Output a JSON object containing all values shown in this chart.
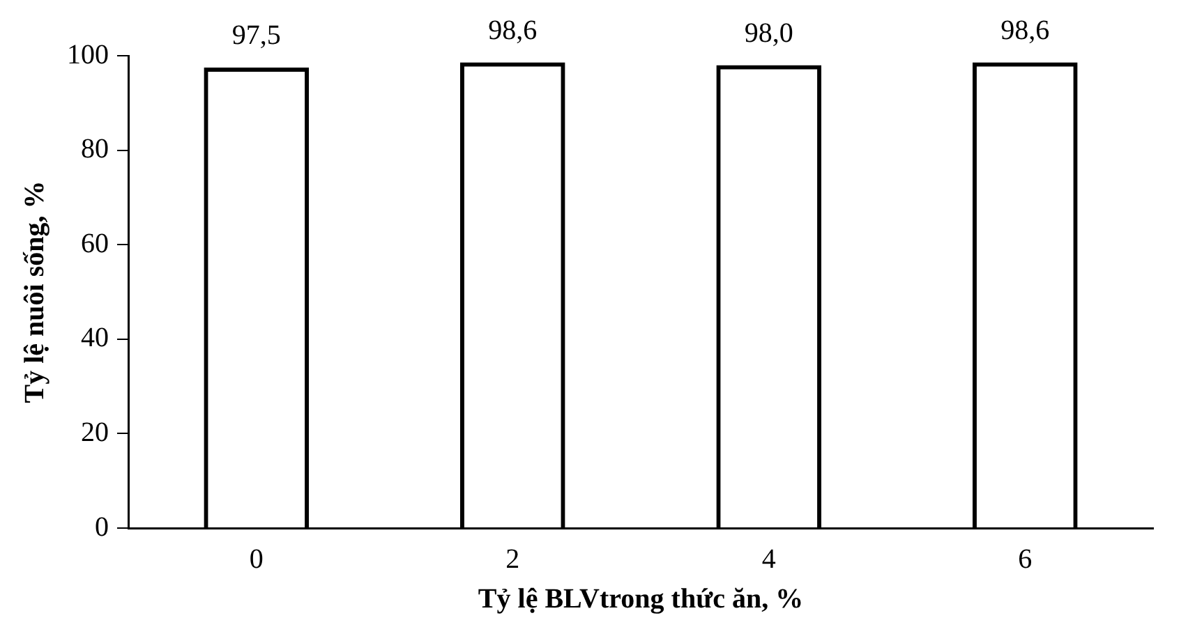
{
  "chart_data": {
    "type": "bar",
    "xlabel": "Tỷ lệ BLVtrong thức ăn, %",
    "ylabel": "Tỷ lệ nuôi sống, %",
    "categories": [
      "0",
      "2",
      "4",
      "6"
    ],
    "values": [
      97.5,
      98.6,
      98.0,
      98.6
    ],
    "value_labels": [
      "97,5",
      "98,6",
      "98,0",
      "98,6"
    ],
    "colors": [
      "#000000",
      "#000000",
      "#000000",
      "#000000"
    ],
    "ylim": [
      0,
      100
    ],
    "yticks": [
      0,
      20,
      40,
      60,
      80,
      100
    ],
    "grid": false,
    "legend": false
  }
}
